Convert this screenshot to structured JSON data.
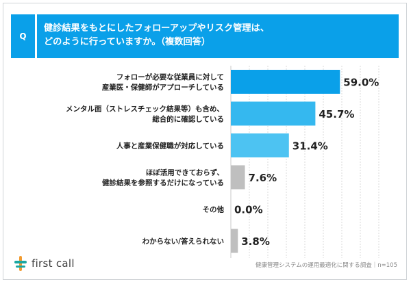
{
  "question": {
    "badge": "Q",
    "line1": "健診結果をもとにしたフォローアップやリスク管理は、",
    "line2": "どのように行っていますか。（複数回答）"
  },
  "colors": {
    "primary": "#0aa0e9",
    "secondary": "#35b8ef",
    "tertiary": "#4dc3f2",
    "neutral": "#bfbfbf",
    "gridline": "#d9d9d9"
  },
  "chart_data": {
    "type": "bar",
    "orientation": "horizontal",
    "categories": [
      [
        "フォローが必要な従業員に対して",
        "産業医・保健師がアプローチしている"
      ],
      [
        "メンタル面（ストレスチェック結果等）も含め、",
        "総合的に確認している"
      ],
      [
        "人事と産業保健職が対応している"
      ],
      [
        "ほぼ活用できておらず、",
        "健診結果を参照するだけになっている"
      ],
      [
        "その他"
      ],
      [
        "わからない/答えられない"
      ]
    ],
    "values": [
      59.0,
      45.7,
      31.4,
      7.6,
      0.0,
      3.8
    ],
    "value_labels": [
      "59.0%",
      "45.7%",
      "31.4%",
      "7.6%",
      "0.0%",
      "3.8%"
    ],
    "bar_colors": [
      "#0aa0e9",
      "#35b8ef",
      "#4dc3f2",
      "#bfbfbf",
      "#bfbfbf",
      "#bfbfbf"
    ],
    "unit": "%",
    "xlim": [
      0,
      100
    ],
    "grid": true
  },
  "footer": {
    "brand": "first call",
    "source": "健康管理システムの運用最適化に関する調査｜n=105"
  }
}
